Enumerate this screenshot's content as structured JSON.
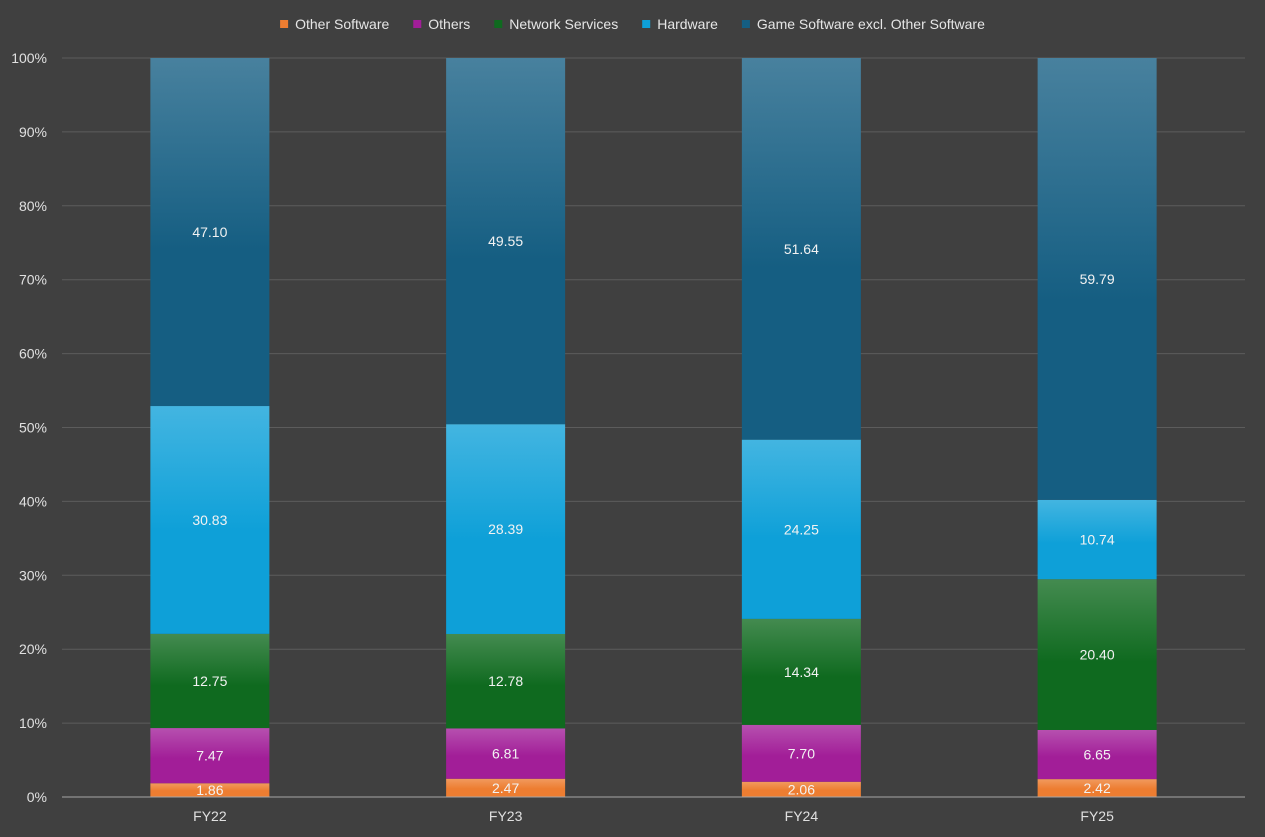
{
  "chart_data": {
    "type": "bar",
    "stacked": true,
    "percent_stacked": true,
    "categories": [
      "FY22",
      "FY23",
      "FY24",
      "FY25"
    ],
    "series": [
      {
        "name": "Other Software",
        "values": [
          1.86,
          2.47,
          2.06,
          2.42
        ],
        "color": "#ED7D31"
      },
      {
        "name": "Others",
        "values": [
          7.47,
          6.81,
          7.7,
          6.65
        ],
        "color": "#A21E98"
      },
      {
        "name": "Network Services",
        "values": [
          12.75,
          12.78,
          14.34,
          20.4
        ],
        "color": "#0F6A1F"
      },
      {
        "name": "Hardware",
        "values": [
          30.83,
          28.39,
          24.25,
          10.74
        ],
        "color": "#0EA0D8"
      },
      {
        "name": "Game Software excl. Other Software",
        "values": [
          47.1,
          49.55,
          51.64,
          59.79
        ],
        "color": "#155E82"
      }
    ],
    "y_ticks": [
      "0%",
      "10%",
      "20%",
      "30%",
      "40%",
      "50%",
      "60%",
      "70%",
      "80%",
      "90%",
      "100%"
    ],
    "ylim": [
      0,
      100
    ],
    "grid": true,
    "legend_position": "top"
  }
}
